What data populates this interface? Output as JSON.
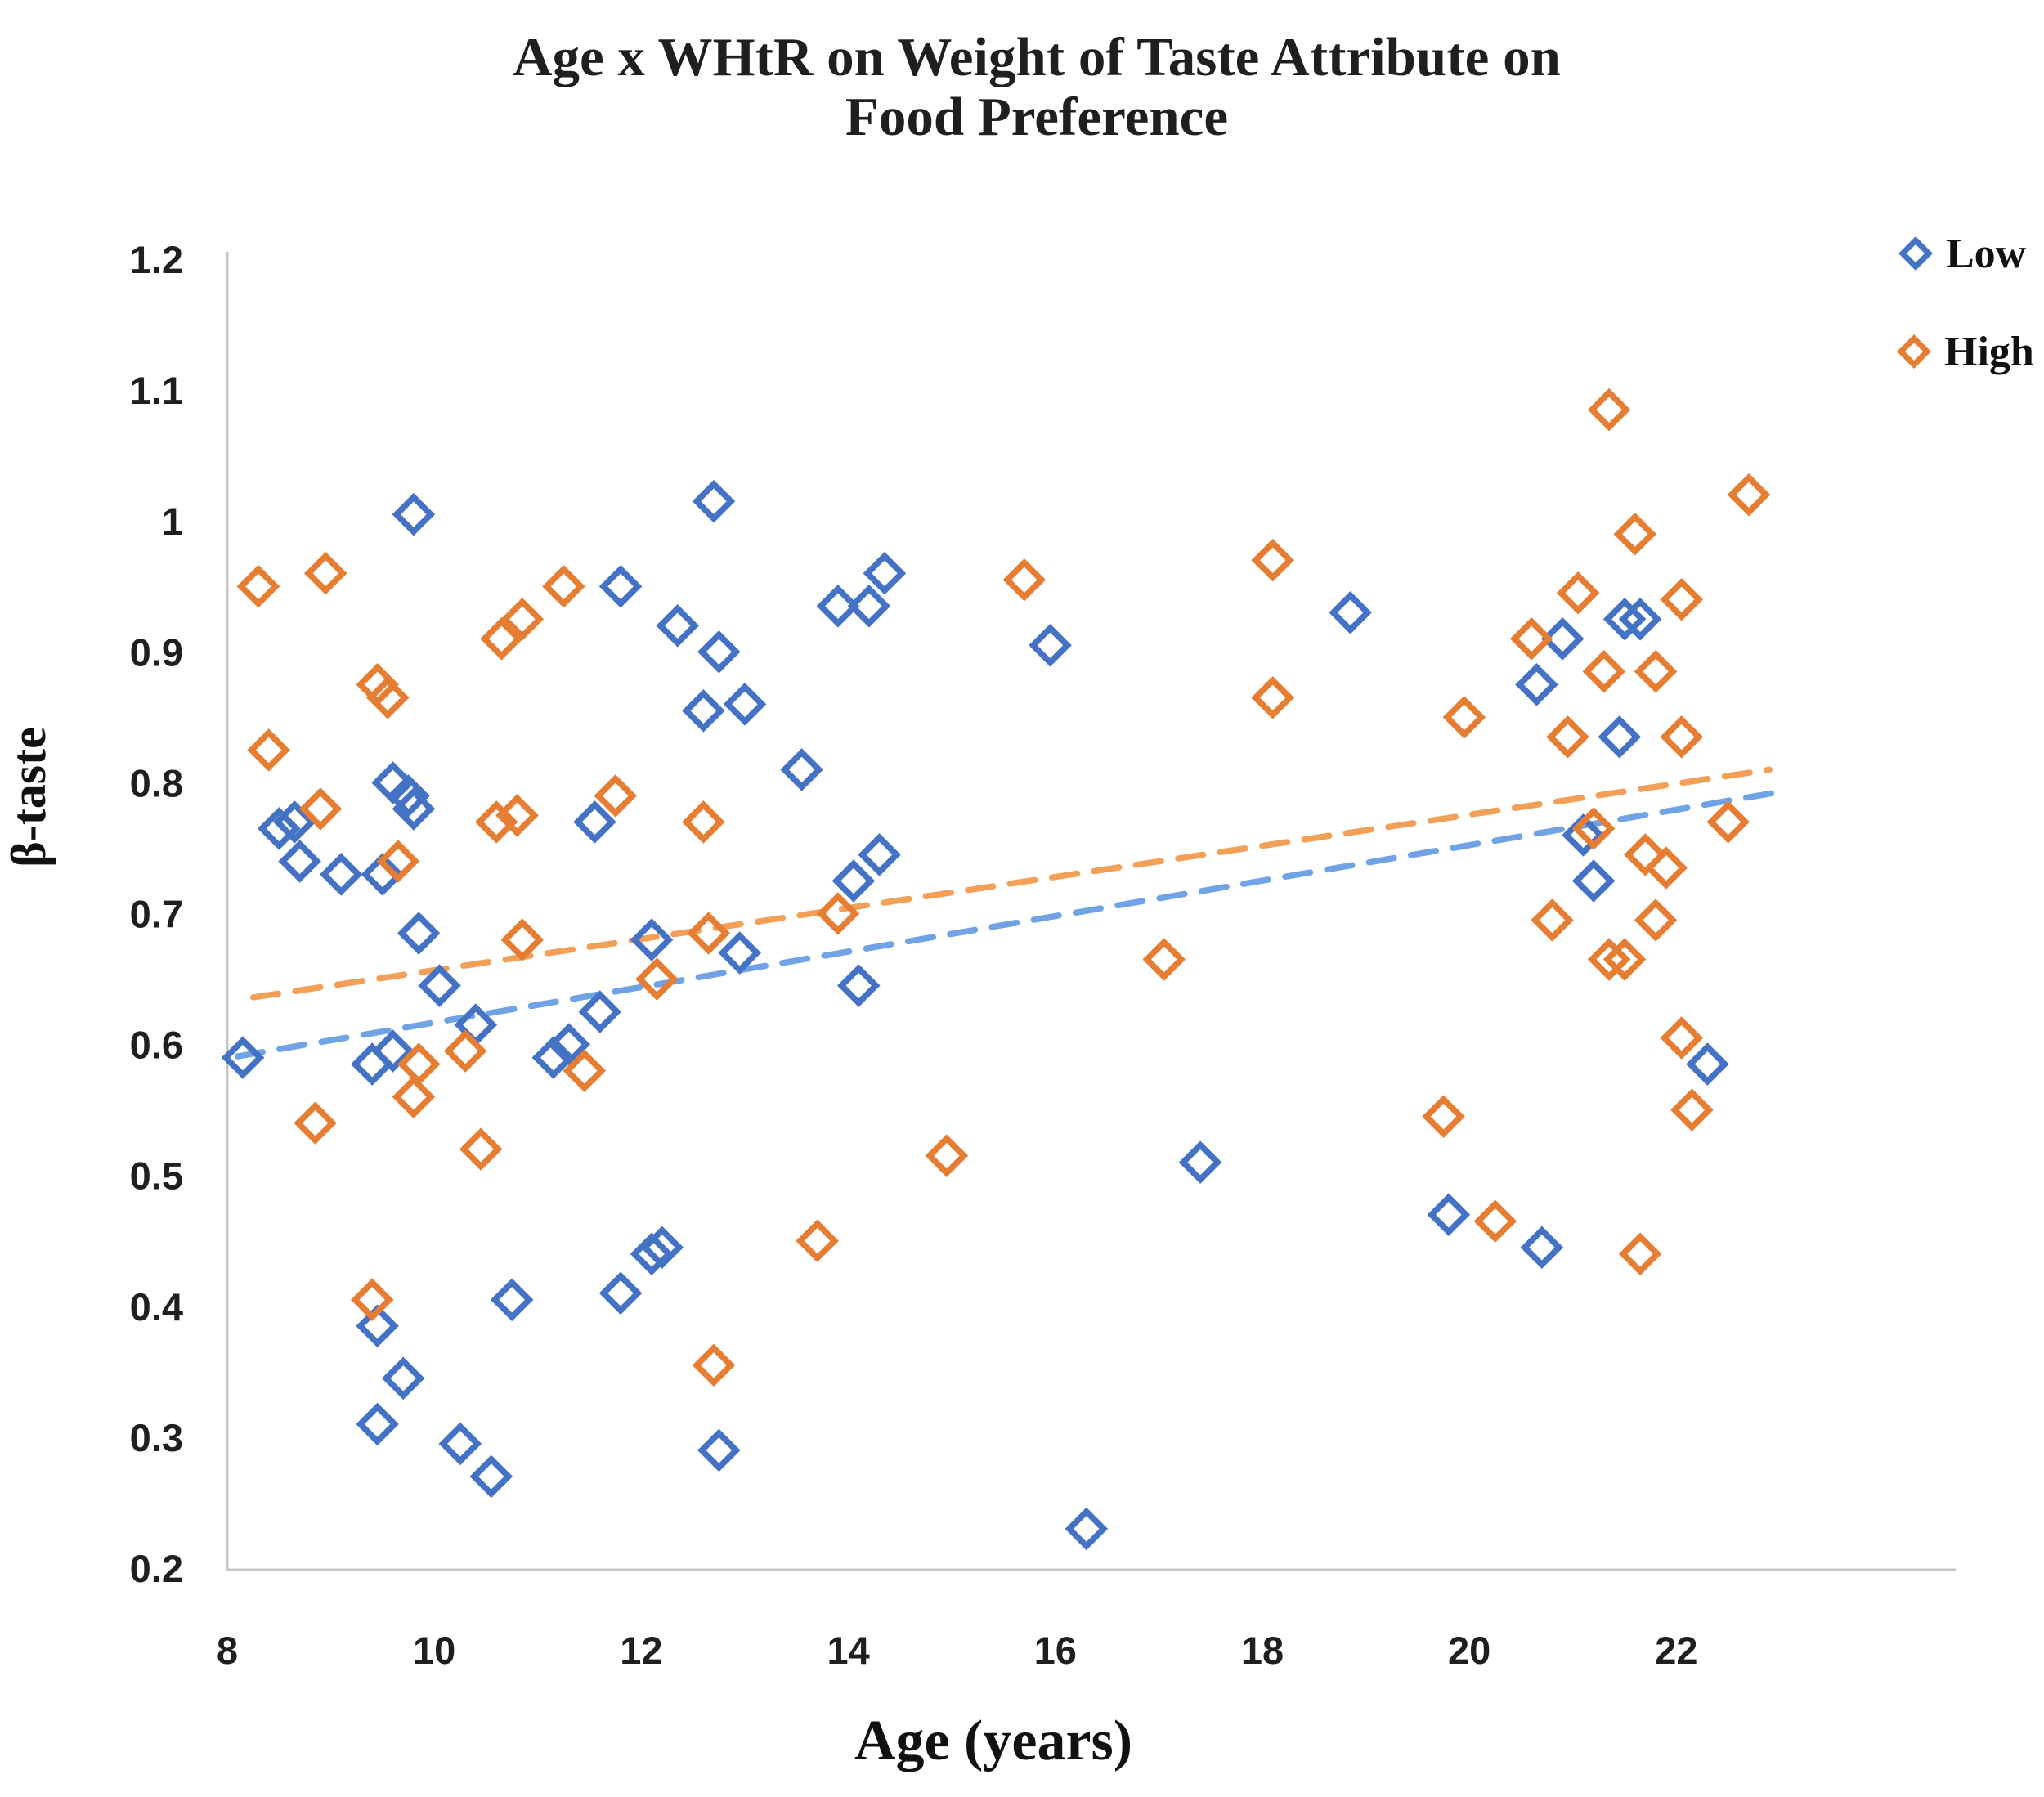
{
  "title": {
    "line1": "Age x WHtR on Weight of Taste Attribute on",
    "line2": "Food Preference"
  },
  "legend": {
    "low_label": "Low",
    "high_label": "High"
  },
  "colors": {
    "low_marker": "#4472C4",
    "high_marker": "#E57E33",
    "low_trend": "#70A3E5",
    "high_trend": "#F2A057",
    "axis_line": "#C6C6C6",
    "text": "#1f1f1f"
  },
  "chart_data": {
    "type": "scatter",
    "title": "Age x WHtR on Weight of Taste Attribute on Food Preference",
    "xlabel": "Age (years)",
    "ylabel": "β-taste",
    "xlim": [
      8,
      23.3
    ],
    "ylim": [
      0.2,
      1.2
    ],
    "x_ticks": [
      8,
      10,
      12,
      14,
      16,
      18,
      20,
      22
    ],
    "y_ticks": [
      "1.2",
      "1.1",
      "1",
      "0.9",
      "0.8",
      "0.7",
      "0.6",
      "0.5",
      "0.4",
      "0.3",
      "0.2"
    ],
    "grid": false,
    "legend_position": "top-right",
    "marker_shape": "open-diamond",
    "series": [
      {
        "name": "Low",
        "points": [
          [
            8.15,
            0.59
          ],
          [
            8.5,
            0.765
          ],
          [
            8.65,
            0.77
          ],
          [
            8.7,
            0.74
          ],
          [
            9.1,
            0.73
          ],
          [
            9.4,
            0.585
          ],
          [
            9.45,
            0.31
          ],
          [
            9.45,
            0.385
          ],
          [
            9.5,
            0.73
          ],
          [
            9.6,
            0.595
          ],
          [
            9.6,
            0.8
          ],
          [
            9.7,
            0.345
          ],
          [
            9.75,
            0.79
          ],
          [
            9.8,
            0.78
          ],
          [
            9.8,
            1.005
          ],
          [
            9.85,
            0.685
          ],
          [
            10.05,
            0.645
          ],
          [
            10.25,
            0.295
          ],
          [
            10.4,
            0.615
          ],
          [
            10.55,
            0.27
          ],
          [
            10.75,
            0.405
          ],
          [
            11.15,
            0.59
          ],
          [
            11.3,
            0.6
          ],
          [
            11.55,
            0.77
          ],
          [
            11.6,
            0.625
          ],
          [
            11.8,
            0.41
          ],
          [
            11.8,
            0.95
          ],
          [
            12.1,
            0.68
          ],
          [
            12.1,
            0.44
          ],
          [
            12.2,
            0.445
          ],
          [
            12.35,
            0.92
          ],
          [
            12.6,
            0.855
          ],
          [
            12.7,
            1.015
          ],
          [
            12.75,
            0.9
          ],
          [
            12.75,
            0.29
          ],
          [
            12.95,
            0.67
          ],
          [
            13.0,
            0.86
          ],
          [
            13.55,
            0.81
          ],
          [
            13.9,
            0.935
          ],
          [
            14.05,
            0.725
          ],
          [
            14.1,
            0.645
          ],
          [
            14.2,
            0.935
          ],
          [
            14.3,
            0.745
          ],
          [
            14.35,
            0.96
          ],
          [
            15.95,
            0.905
          ],
          [
            16.3,
            0.23
          ],
          [
            17.4,
            0.51
          ],
          [
            18.85,
            0.93
          ],
          [
            19.8,
            0.47
          ],
          [
            20.65,
            0.875
          ],
          [
            20.7,
            0.445
          ],
          [
            20.9,
            0.91
          ],
          [
            21.1,
            0.76
          ],
          [
            21.2,
            0.725
          ],
          [
            21.45,
            0.835
          ],
          [
            21.5,
            0.925
          ],
          [
            21.65,
            0.925
          ],
          [
            22.3,
            0.585
          ]
        ]
      },
      {
        "name": "High",
        "points": [
          [
            8.3,
            0.95
          ],
          [
            8.4,
            0.825
          ],
          [
            8.85,
            0.54
          ],
          [
            8.9,
            0.78
          ],
          [
            8.95,
            0.96
          ],
          [
            9.4,
            0.405
          ],
          [
            9.45,
            0.875
          ],
          [
            9.55,
            0.865
          ],
          [
            9.65,
            0.74
          ],
          [
            9.8,
            0.56
          ],
          [
            9.85,
            0.585
          ],
          [
            10.3,
            0.595
          ],
          [
            10.45,
            0.52
          ],
          [
            10.6,
            0.77
          ],
          [
            10.65,
            0.91
          ],
          [
            10.8,
            0.775
          ],
          [
            10.85,
            0.925
          ],
          [
            10.85,
            0.68
          ],
          [
            11.25,
            0.95
          ],
          [
            11.45,
            0.58
          ],
          [
            11.75,
            0.79
          ],
          [
            12.15,
            0.65
          ],
          [
            12.6,
            0.77
          ],
          [
            12.65,
            0.685
          ],
          [
            12.7,
            0.355
          ],
          [
            13.7,
            0.45
          ],
          [
            13.9,
            0.7
          ],
          [
            14.95,
            0.515
          ],
          [
            15.7,
            0.955
          ],
          [
            17.05,
            0.665
          ],
          [
            18.1,
            0.97
          ],
          [
            18.1,
            0.865
          ],
          [
            19.75,
            0.545
          ],
          [
            19.95,
            0.85
          ],
          [
            20.25,
            0.465
          ],
          [
            20.6,
            0.91
          ],
          [
            20.8,
            0.695
          ],
          [
            20.95,
            0.835
          ],
          [
            21.05,
            0.945
          ],
          [
            21.2,
            0.765
          ],
          [
            21.3,
            0.885
          ],
          [
            21.35,
            0.665
          ],
          [
            21.35,
            1.085
          ],
          [
            21.5,
            0.665
          ],
          [
            21.6,
            0.99
          ],
          [
            21.65,
            0.44
          ],
          [
            21.7,
            0.745
          ],
          [
            21.8,
            0.885
          ],
          [
            21.8,
            0.695
          ],
          [
            21.9,
            0.735
          ],
          [
            22.05,
            0.605
          ],
          [
            22.05,
            0.94
          ],
          [
            22.05,
            0.835
          ],
          [
            22.15,
            0.55
          ],
          [
            22.5,
            0.77
          ],
          [
            22.7,
            1.02
          ]
        ]
      }
    ],
    "trendlines": [
      {
        "series": "Low",
        "x1": 8.1,
        "y1": 0.591,
        "x2": 23.0,
        "y2": 0.793,
        "style": "dashed"
      },
      {
        "series": "High",
        "x1": 8.25,
        "y1": 0.636,
        "x2": 22.9,
        "y2": 0.81,
        "style": "dashed"
      }
    ]
  }
}
